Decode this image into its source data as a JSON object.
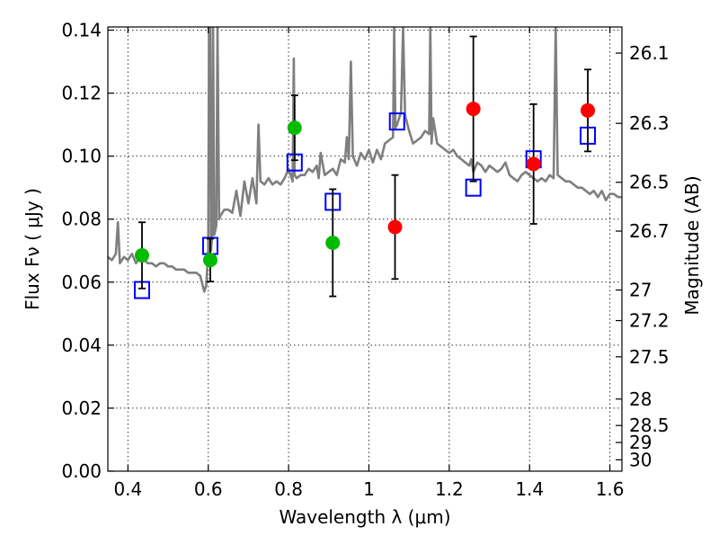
{
  "chart_data": {
    "type": "scatter",
    "title": "",
    "xlabel": "Wavelength  λ (μm)",
    "ylabel": "Flux  Fν  ( μJy )",
    "y2label": "Magnitude (AB)",
    "xlim": [
      0.35,
      1.63
    ],
    "ylim": [
      0.0,
      0.141
    ],
    "grid": true,
    "x_ticks": [
      0.4,
      0.6,
      0.8,
      1.0,
      1.2,
      1.4,
      1.6
    ],
    "x_tick_labels": [
      "0.4",
      "0.6",
      "0.8",
      "1",
      "1.2",
      "1.4",
      "1.6"
    ],
    "y_ticks": [
      0.0,
      0.02,
      0.04,
      0.06,
      0.08,
      0.1,
      0.12,
      0.14
    ],
    "y_tick_labels": [
      "0.00",
      "0.02",
      "0.04",
      "0.06",
      "0.08",
      "0.10",
      "0.12",
      "0.14"
    ],
    "y2_ticks": [
      {
        "flux": 0.1327,
        "label": "26.1"
      },
      {
        "flux": 0.1104,
        "label": "26.3"
      },
      {
        "flux": 0.0917,
        "label": "26.5"
      },
      {
        "flux": 0.0762,
        "label": "26.7"
      },
      {
        "flux": 0.0575,
        "label": "27"
      },
      {
        "flux": 0.0478,
        "label": "27.2"
      },
      {
        "flux": 0.0363,
        "label": "27.5"
      },
      {
        "flux": 0.0229,
        "label": "28"
      },
      {
        "flux": 0.0145,
        "label": "28.5"
      },
      {
        "flux": 0.0091,
        "label": "29"
      },
      {
        "flux": 0.0036,
        "label": "30"
      }
    ],
    "series": [
      {
        "type": "line",
        "color": "#7f7f7f",
        "x": [
          0.35,
          0.36,
          0.37,
          0.375,
          0.38,
          0.39,
          0.4,
          0.41,
          0.42,
          0.43,
          0.44,
          0.45,
          0.46,
          0.47,
          0.48,
          0.49,
          0.5,
          0.51,
          0.52,
          0.53,
          0.54,
          0.55,
          0.56,
          0.57,
          0.58,
          0.59,
          0.595,
          0.6,
          0.602,
          0.605,
          0.607,
          0.61,
          0.612,
          0.615,
          0.62,
          0.623,
          0.627,
          0.63,
          0.64,
          0.65,
          0.66,
          0.67,
          0.68,
          0.69,
          0.7,
          0.71,
          0.72,
          0.725,
          0.73,
          0.74,
          0.75,
          0.76,
          0.77,
          0.78,
          0.79,
          0.8,
          0.81,
          0.813,
          0.815,
          0.82,
          0.83,
          0.84,
          0.85,
          0.86,
          0.87,
          0.875,
          0.88,
          0.89,
          0.9,
          0.91,
          0.92,
          0.93,
          0.94,
          0.945,
          0.95,
          0.955,
          0.96,
          0.97,
          0.98,
          0.99,
          1.0,
          1.01,
          1.02,
          1.03,
          1.04,
          1.05,
          1.06,
          1.063,
          1.066,
          1.07,
          1.08,
          1.085,
          1.09,
          1.1,
          1.11,
          1.12,
          1.13,
          1.14,
          1.15,
          1.153,
          1.156,
          1.16,
          1.17,
          1.18,
          1.19,
          1.2,
          1.21,
          1.22,
          1.23,
          1.24,
          1.25,
          1.255,
          1.26,
          1.27,
          1.28,
          1.29,
          1.3,
          1.31,
          1.32,
          1.33,
          1.34,
          1.35,
          1.36,
          1.37,
          1.38,
          1.39,
          1.4,
          1.41,
          1.42,
          1.43,
          1.44,
          1.45,
          1.46,
          1.465,
          1.47,
          1.48,
          1.49,
          1.5,
          1.51,
          1.52,
          1.53,
          1.54,
          1.55,
          1.56,
          1.57,
          1.58,
          1.59,
          1.6,
          1.61,
          1.62,
          1.63
        ],
        "y": [
          0.068,
          0.067,
          0.069,
          0.079,
          0.066,
          0.068,
          0.067,
          0.069,
          0.066,
          0.068,
          0.067,
          0.066,
          0.066,
          0.065,
          0.066,
          0.066,
          0.065,
          0.065,
          0.064,
          0.064,
          0.064,
          0.063,
          0.063,
          0.063,
          0.062,
          0.057,
          0.059,
          0.07,
          0.141,
          0.141,
          0.07,
          0.075,
          0.141,
          0.075,
          0.078,
          0.141,
          0.08,
          0.081,
          0.083,
          0.083,
          0.082,
          0.089,
          0.081,
          0.092,
          0.085,
          0.093,
          0.085,
          0.11,
          0.092,
          0.091,
          0.093,
          0.091,
          0.092,
          0.091,
          0.093,
          0.096,
          0.092,
          0.131,
          0.094,
          0.093,
          0.094,
          0.094,
          0.096,
          0.095,
          0.097,
          0.093,
          0.101,
          0.094,
          0.095,
          0.096,
          0.094,
          0.099,
          0.098,
          0.106,
          0.099,
          0.13,
          0.1,
          0.097,
          0.101,
          0.099,
          0.102,
          0.098,
          0.102,
          0.099,
          0.104,
          0.105,
          0.106,
          0.141,
          0.109,
          0.11,
          0.114,
          0.141,
          0.113,
          0.108,
          0.104,
          0.105,
          0.106,
          0.108,
          0.107,
          0.141,
          0.104,
          0.112,
          0.104,
          0.103,
          0.102,
          0.101,
          0.102,
          0.1,
          0.099,
          0.098,
          0.097,
          0.099,
          0.095,
          0.098,
          0.097,
          0.095,
          0.097,
          0.096,
          0.095,
          0.096,
          0.098,
          0.094,
          0.093,
          0.092,
          0.094,
          0.095,
          0.094,
          0.093,
          0.092,
          0.093,
          0.092,
          0.094,
          0.093,
          0.141,
          0.094,
          0.093,
          0.092,
          0.092,
          0.091,
          0.09,
          0.09,
          0.089,
          0.088,
          0.089,
          0.087,
          0.089,
          0.086,
          0.088,
          0.088,
          0.087,
          0.087
        ]
      },
      {
        "type": "squares",
        "color": "#0000ff",
        "x": [
          0.435,
          0.605,
          0.815,
          0.91,
          1.07,
          1.26,
          1.41,
          1.545
        ],
        "y": [
          0.0575,
          0.0715,
          0.098,
          0.0855,
          0.111,
          0.09,
          0.099,
          0.1065
        ]
      },
      {
        "type": "points",
        "color": "#00bb00",
        "x": [
          0.435,
          0.605,
          0.815,
          0.91
        ],
        "y": [
          0.0685,
          0.067,
          0.109,
          0.0725
        ],
        "err": [
          0.0105,
          0.0068,
          0.0103,
          0.017
        ]
      },
      {
        "type": "points",
        "color": "#ff0000",
        "x": [
          1.065,
          1.26,
          1.41,
          1.545
        ],
        "y": [
          0.0775,
          0.115,
          0.0975,
          0.1145
        ],
        "err": [
          0.0165,
          0.023,
          0.019,
          0.013
        ]
      }
    ]
  }
}
